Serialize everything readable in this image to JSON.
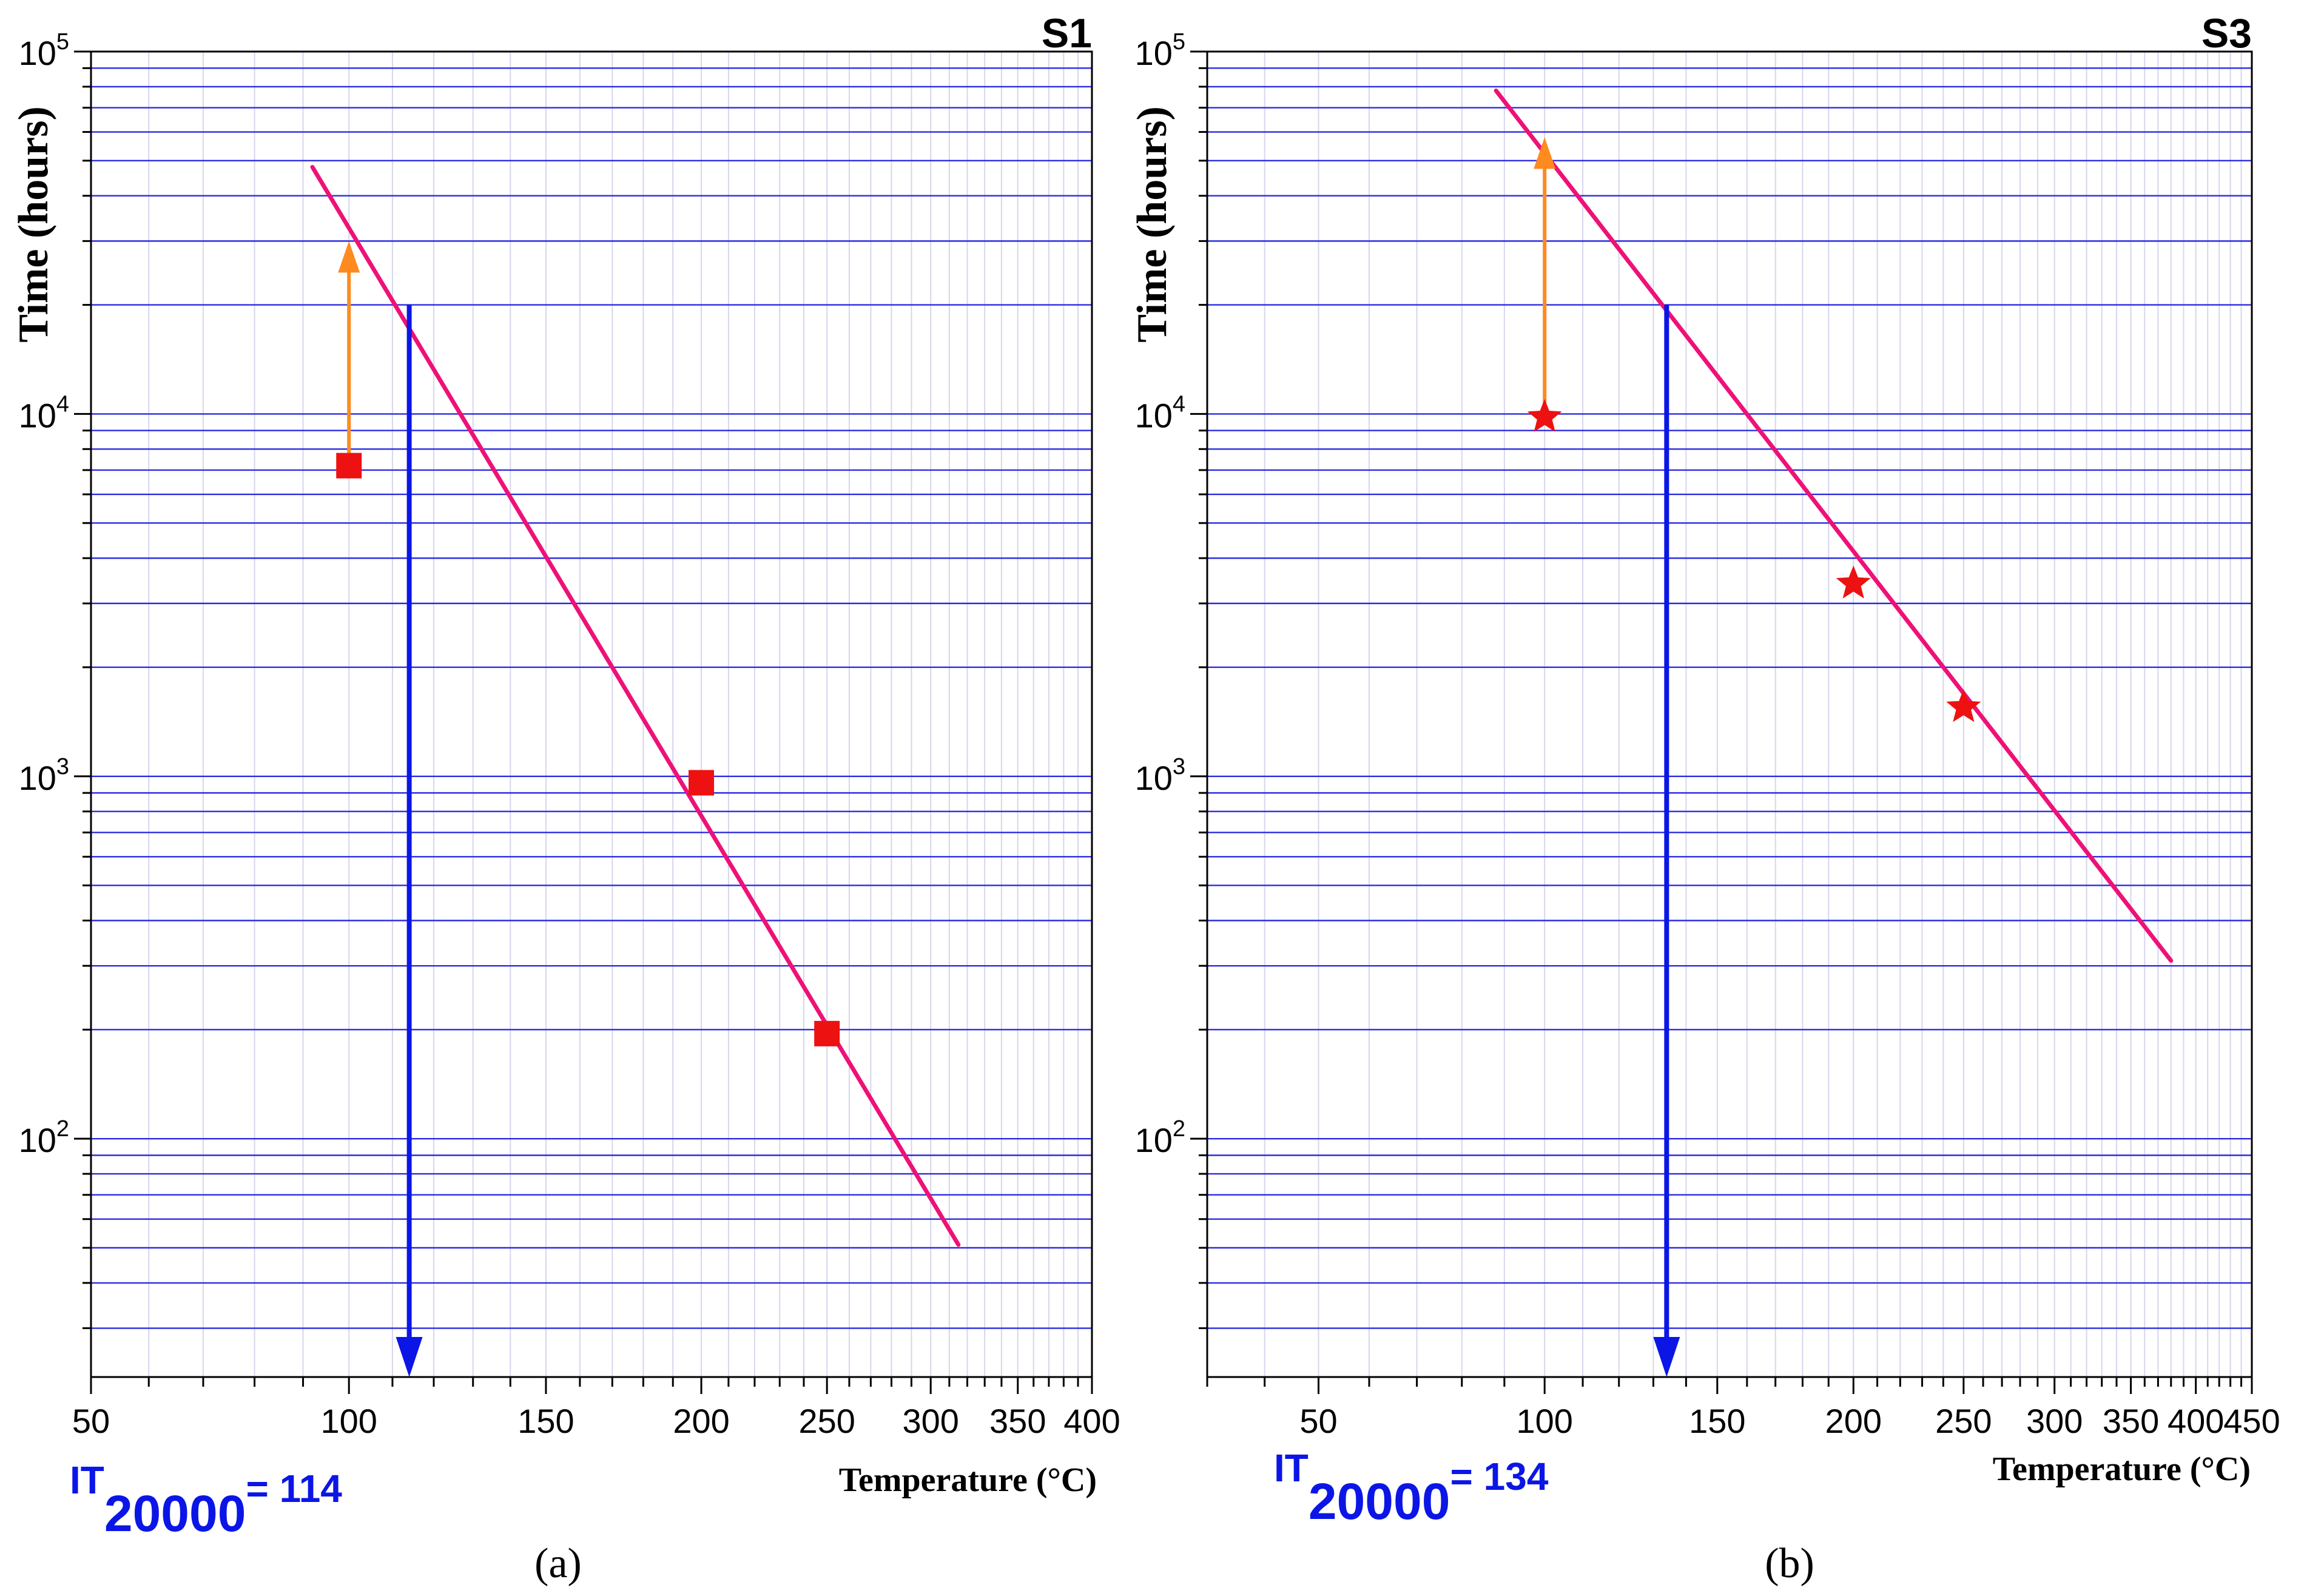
{
  "figure": {
    "panels": [
      {
        "tag": "S1",
        "caption": "(a)",
        "ylabel": "Time (hours)",
        "xlabel": "Temperature (°C)",
        "result": {
          "prefix": "IT",
          "sub": "20000",
          "rest": "= 114"
        }
      },
      {
        "tag": "S3",
        "caption": "(b)",
        "ylabel": "Time (hours)",
        "xlabel": "Temperature (°C)",
        "result": {
          "prefix": "IT",
          "sub": "20000",
          "rest": "= 134"
        }
      }
    ]
  },
  "chart_data": [
    {
      "type": "line",
      "title": "S1",
      "xlabel": "Temperature (°C)",
      "ylabel": "Time (hours)",
      "xscale": "reciprocal-temperature (Arrhenius)",
      "yscale": "log10",
      "xlim": [
        50,
        400
      ],
      "ylim": [
        22,
        100000
      ],
      "xticks": [
        50,
        100,
        150,
        200,
        250,
        300,
        350,
        400
      ],
      "xtick_labels": [
        "50",
        "100",
        "150",
        "200",
        "250",
        "300",
        "350",
        "400"
      ],
      "yticks": [
        100,
        1000,
        10000,
        100000
      ],
      "ytick_exponents": [
        "2",
        "3",
        "4",
        "5"
      ],
      "series": [
        {
          "name": "Measured lifetime",
          "marker": "square",
          "color": "#ee1111",
          "x": [
            100,
            200,
            250
          ],
          "y": [
            7200,
            960,
            195
          ]
        },
        {
          "name": "Regression line",
          "color": "#ee1177",
          "x": [
            92,
            315
          ],
          "y": [
            48000,
            51
          ]
        }
      ],
      "arrows": [
        {
          "name": "extrapolation",
          "color": "#ff8a1f",
          "x": 100,
          "y_from": 7200,
          "y_to": 30000
        },
        {
          "name": "thermal index",
          "color": "#0b16e6",
          "x": 114,
          "y_from": 20000,
          "y_to": 22
        }
      ],
      "thermal_index": 114
    },
    {
      "type": "line",
      "title": "S3",
      "xlabel": "Temperature (°C)",
      "ylabel": "Time (hours)",
      "xscale": "reciprocal-temperature (Arrhenius)",
      "yscale": "log10",
      "xlim": [
        30,
        450
      ],
      "ylim": [
        22,
        100000
      ],
      "xticks": [
        50,
        100,
        150,
        200,
        250,
        300,
        350,
        400,
        450
      ],
      "xtick_labels": [
        "50",
        "100",
        "150",
        "200",
        "250",
        "300",
        "350",
        "400",
        "450"
      ],
      "yticks": [
        100,
        1000,
        10000,
        100000
      ],
      "ytick_exponents": [
        "2",
        "3",
        "4",
        "5"
      ],
      "series": [
        {
          "name": "Measured lifetime",
          "marker": "star",
          "color": "#ee1111",
          "x": [
            100,
            200,
            250
          ],
          "y": [
            9800,
            3400,
            1550
          ]
        },
        {
          "name": "Regression line",
          "color": "#ee1177",
          "x": [
            88,
            380
          ],
          "y": [
            78000,
            310
          ]
        }
      ],
      "arrows": [
        {
          "name": "extrapolation",
          "color": "#ff8a1f",
          "x": 100,
          "y_from": 9800,
          "y_to": 58000
        },
        {
          "name": "thermal index",
          "color": "#0b16e6",
          "x": 134,
          "y_from": 20000,
          "y_to": 22
        }
      ],
      "thermal_index": 134
    }
  ]
}
